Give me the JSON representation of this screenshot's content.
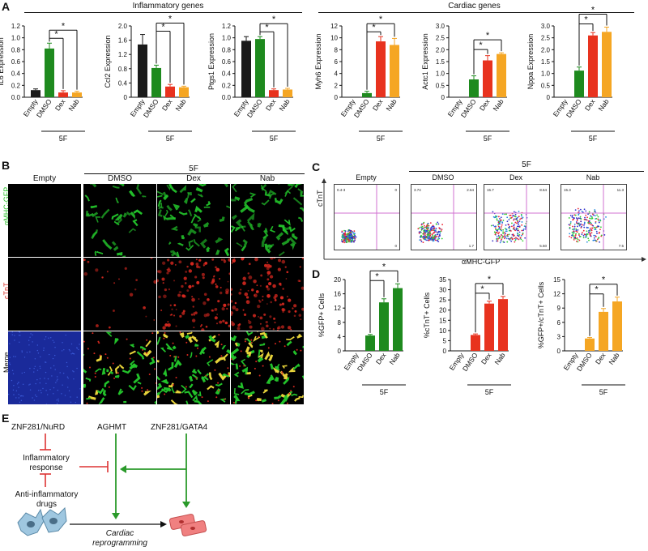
{
  "panels": {
    "a": "A",
    "b": "B",
    "c": "C",
    "d": "D",
    "e": "E"
  },
  "panel_a": {
    "group_inflammatory": "Inflammatory genes",
    "group_cardiac": "Cardiac genes",
    "group_5f": "5F",
    "sig": "*"
  },
  "panel_b": {
    "col_empty": "Empty",
    "col_dmso": "DMSO",
    "col_dex": "Dex",
    "col_nab": "Nab",
    "group_5f": "5F",
    "row_gfp": "αMHC-GFP",
    "row_ctnt": "cTnT",
    "row_merge": "Merge",
    "colors": {
      "gfp": "#22c12a",
      "ctnt": "#d6281f",
      "merge_bg": "#1a2a9a"
    }
  },
  "panel_c": {
    "group_5f": "5F",
    "labels": [
      "Empty",
      "DMSO",
      "Dex",
      "Nab"
    ],
    "ylabel": "cTnT",
    "xlabel": "αMHC-GFP",
    "quadrant_values": [
      [
        "0.4-3",
        "0",
        "",
        "0"
      ],
      [
        "3.74",
        "2.64",
        "",
        "1.7"
      ],
      [
        "15.7",
        "8.64",
        "",
        "5.50"
      ],
      [
        "15.3",
        "11.3",
        "",
        "7.5"
      ]
    ]
  },
  "panel_e": {
    "nurd": "ZNF281/NuRD",
    "aghmt": "AGHMT",
    "gata4": "ZNF281/GATA4",
    "inflam_1": "Inflammatory",
    "inflam_2": "response",
    "anti_1": "Anti-inflammatory",
    "anti_2": "drugs",
    "cardiac_1": "Cardiac",
    "cardiac_2": "reprogramming"
  },
  "colors": {
    "empty": "#1a1a1a",
    "dmso": "#1e8a1e",
    "dex": "#e8321e",
    "nab": "#f5a623",
    "green_arrow": "#2a9a2a",
    "red_inhibit": "#d33"
  },
  "chart_data": [
    {
      "id": "il6",
      "type": "bar",
      "ylabel": "IL6 Expression",
      "categories": [
        "Empty",
        "DMSO",
        "Dex",
        "Nab"
      ],
      "values": [
        0.12,
        0.82,
        0.08,
        0.08
      ],
      "errors": [
        0.02,
        0.09,
        0.03,
        0.02
      ],
      "ylim": [
        0,
        1.2
      ],
      "yticks": [
        "0.0",
        "0.2",
        "0.4",
        "0.6",
        "0.8",
        "1.0",
        "1.2"
      ],
      "tickvals": [
        0,
        0.2,
        0.4,
        0.6,
        0.8,
        1.0,
        1.2
      ],
      "group": "5F",
      "brackets": [
        [
          1,
          3
        ],
        [
          1,
          2
        ]
      ]
    },
    {
      "id": "ccl2",
      "type": "bar",
      "ylabel": "Ccl2 Expression",
      "categories": [
        "Empty",
        "DMSO",
        "Dex",
        "Nab"
      ],
      "values": [
        1.48,
        0.82,
        0.3,
        0.28
      ],
      "errors": [
        0.28,
        0.08,
        0.06,
        0.03
      ],
      "ylim": [
        0,
        2.0
      ],
      "yticks": [
        "0",
        "0.4",
        "0.8",
        "1.2",
        "1.6",
        "2.0"
      ],
      "tickvals": [
        0,
        0.4,
        0.8,
        1.2,
        1.6,
        2.0
      ],
      "group": "5F",
      "brackets": [
        [
          1,
          3
        ],
        [
          1,
          2
        ]
      ]
    },
    {
      "id": "ptgs1",
      "type": "bar",
      "ylabel": "Ptgs1 Expression",
      "categories": [
        "Empty",
        "DMSO",
        "Dex",
        "Nab"
      ],
      "values": [
        0.95,
        0.98,
        0.12,
        0.13
      ],
      "errors": [
        0.07,
        0.04,
        0.02,
        0.02
      ],
      "ylim": [
        0,
        1.2
      ],
      "yticks": [
        "0.0",
        "0.2",
        "0.4",
        "0.6",
        "0.8",
        "1.0",
        "1.2"
      ],
      "tickvals": [
        0,
        0.2,
        0.4,
        0.6,
        0.8,
        1.0,
        1.2
      ],
      "group": "5F",
      "brackets": [
        [
          1,
          3
        ],
        [
          1,
          2
        ]
      ]
    },
    {
      "id": "myh6",
      "type": "bar",
      "ylabel": "Myh6 Expression",
      "categories": [
        "Empty",
        "DMSO",
        "Dex",
        "Nab"
      ],
      "values": [
        0,
        0.7,
        9.4,
        8.8
      ],
      "errors": [
        0,
        0.3,
        0.8,
        1.1
      ],
      "ylim": [
        0,
        12
      ],
      "yticks": [
        "0",
        "2",
        "4",
        "6",
        "8",
        "10",
        "12"
      ],
      "tickvals": [
        0,
        2,
        4,
        6,
        8,
        10,
        12
      ],
      "group": "5F",
      "brackets": [
        [
          1,
          3
        ],
        [
          1,
          2
        ]
      ]
    },
    {
      "id": "actc1",
      "type": "bar",
      "ylabel": "Actc1 Expression",
      "categories": [
        "Empty",
        "DMSO",
        "Dex",
        "Nab"
      ],
      "values": [
        0,
        0.75,
        1.55,
        1.82
      ],
      "errors": [
        0,
        0.15,
        0.2,
        0.05
      ],
      "ylim": [
        0,
        3.0
      ],
      "yticks": [
        "0",
        "0.5",
        "1.0",
        "1.5",
        "2.0",
        "2.5",
        "3.0"
      ],
      "tickvals": [
        0,
        0.5,
        1.0,
        1.5,
        2.0,
        2.5,
        3.0
      ],
      "group": "5F",
      "brackets": [
        [
          1,
          3
        ],
        [
          1,
          2
        ]
      ]
    },
    {
      "id": "nppa",
      "type": "bar",
      "ylabel": "Nppa Expression",
      "categories": [
        "Empty",
        "DMSO",
        "Dex",
        "Nab"
      ],
      "values": [
        0,
        1.12,
        2.6,
        2.75
      ],
      "errors": [
        0,
        0.15,
        0.12,
        0.2
      ],
      "ylim": [
        0,
        3.0
      ],
      "yticks": [
        "0",
        "0.5",
        "1.0",
        "1.5",
        "2.0",
        "2.5",
        "3.0"
      ],
      "tickvals": [
        0,
        0.5,
        1.0,
        1.5,
        2.0,
        2.5,
        3.0
      ],
      "group": "5F",
      "brackets": [
        [
          1,
          3
        ],
        [
          1,
          2
        ]
      ]
    },
    {
      "id": "gfp",
      "type": "bar",
      "ylabel": "%GFP+ Cells",
      "categories": [
        "Empty",
        "DMSO",
        "Dex",
        "Nab"
      ],
      "values": [
        0,
        4.3,
        13.6,
        17.6
      ],
      "errors": [
        0,
        0.3,
        1.0,
        1.2
      ],
      "ylim": [
        0,
        20
      ],
      "yticks": [
        "0",
        "4",
        "8",
        "12",
        "16",
        "20"
      ],
      "tickvals": [
        0,
        4,
        8,
        12,
        16,
        20
      ],
      "group": "5F",
      "brackets": [
        [
          1,
          3
        ],
        [
          1,
          2
        ]
      ],
      "single_color": "#1e8a1e"
    },
    {
      "id": "ctnt",
      "type": "bar",
      "ylabel": "%cTnT+ Cells",
      "categories": [
        "Empty",
        "DMSO",
        "Dex",
        "Nab"
      ],
      "values": [
        0,
        7.8,
        23.2,
        25.4
      ],
      "errors": [
        0,
        0.5,
        1.2,
        1.3
      ],
      "ylim": [
        0,
        35
      ],
      "yticks": [
        "0",
        "5",
        "10",
        "15",
        "20",
        "25",
        "30",
        "35"
      ],
      "tickvals": [
        0,
        5,
        10,
        15,
        20,
        25,
        30,
        35
      ],
      "group": "5F",
      "brackets": [
        [
          1,
          3
        ],
        [
          1,
          2
        ]
      ],
      "single_color": "#e8321e"
    },
    {
      "id": "gfpctnt",
      "type": "bar",
      "ylabel": "%GFP+/cTnT+ Cells",
      "categories": [
        "Empty",
        "DMSO",
        "Dex",
        "Nab"
      ],
      "values": [
        0,
        2.6,
        8.2,
        10.4
      ],
      "errors": [
        0,
        0.2,
        0.7,
        0.9
      ],
      "ylim": [
        0,
        15
      ],
      "yticks": [
        "0",
        "3",
        "6",
        "9",
        "12",
        "15"
      ],
      "tickvals": [
        0,
        3,
        6,
        9,
        12,
        15
      ],
      "group": "5F",
      "brackets": [
        [
          1,
          3
        ],
        [
          1,
          2
        ]
      ],
      "single_color": "#f5a623"
    }
  ]
}
